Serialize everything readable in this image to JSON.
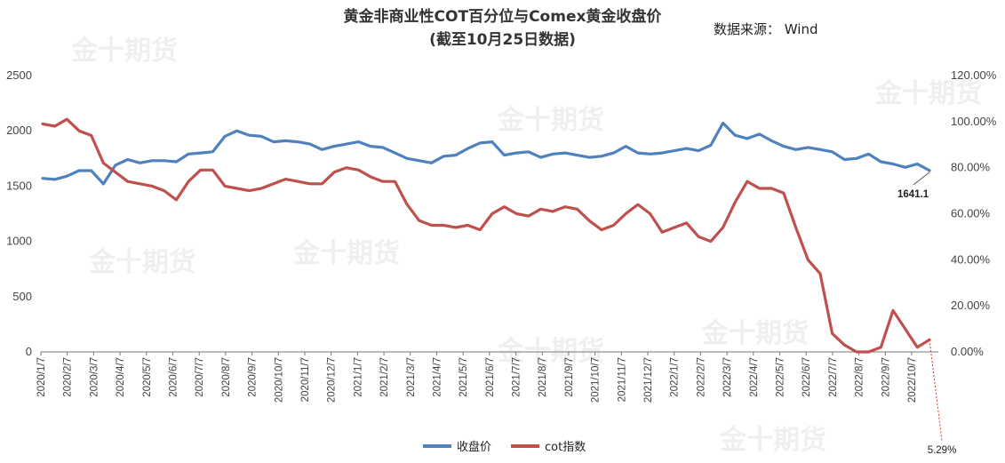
{
  "title_line1": "黄金非商业性COT百分位与Comex黄金收盘价",
  "title_line2": "(截至10月25日数据)",
  "source": "数据来源： Wind",
  "watermark": "金十期货",
  "chart_data": {
    "type": "line",
    "x": [
      "2020/1/7",
      "2020/1/21",
      "2020/2/4",
      "2020/2/18",
      "2020/3/3",
      "2020/3/17",
      "2020/3/31",
      "2020/4/14",
      "2020/4/28",
      "2020/5/12",
      "2020/5/26",
      "2020/6/9",
      "2020/6/23",
      "2020/7/7",
      "2020/7/21",
      "2020/8/4",
      "2020/8/18",
      "2020/9/1",
      "2020/9/15",
      "2020/9/29",
      "2020/10/13",
      "2020/10/27",
      "2020/11/10",
      "2020/11/24",
      "2020/12/8",
      "2020/12/22",
      "2021/1/5",
      "2021/1/19",
      "2021/2/2",
      "2021/2/16",
      "2021/3/2",
      "2021/3/16",
      "2021/3/30",
      "2021/4/13",
      "2021/4/27",
      "2021/5/11",
      "2021/5/25",
      "2021/6/8",
      "2021/6/22",
      "2021/7/6",
      "2021/7/20",
      "2021/8/3",
      "2021/8/17",
      "2021/8/31",
      "2021/9/14",
      "2021/9/28",
      "2021/10/12",
      "2021/10/26",
      "2021/11/9",
      "2021/11/23",
      "2021/12/7",
      "2021/12/21",
      "2022/1/4",
      "2022/1/18",
      "2022/2/1",
      "2022/2/15",
      "2022/3/1",
      "2022/3/15",
      "2022/3/29",
      "2022/4/12",
      "2022/4/26",
      "2022/5/10",
      "2022/5/24",
      "2022/6/7",
      "2022/6/21",
      "2022/7/5",
      "2022/7/19",
      "2022/8/2",
      "2022/8/16",
      "2022/8/30",
      "2022/9/13",
      "2022/9/27",
      "2022/10/11",
      "2022/10/25"
    ],
    "x_tick_labels": [
      "2020/1/7",
      "2020/2/7",
      "2020/3/7",
      "2020/4/7",
      "2020/5/7",
      "2020/6/7",
      "2020/7/7",
      "2020/8/7",
      "2020/9/7",
      "2020/10/7",
      "2020/11/7",
      "2020/12/7",
      "2021/1/7",
      "2021/2/7",
      "2021/3/7",
      "2021/4/7",
      "2021/5/7",
      "2021/6/7",
      "2021/7/7",
      "2021/8/7",
      "2021/9/7",
      "2021/10/7",
      "2021/11/7",
      "2021/12/7",
      "2022/1/7",
      "2022/2/7",
      "2022/3/7",
      "2022/4/7",
      "2022/5/7",
      "2022/6/7",
      "2022/7/7",
      "2022/8/7",
      "2022/9/7",
      "2022/10/7"
    ],
    "series": [
      {
        "name": "收盘价",
        "axis": "left",
        "color": "#4f81bd",
        "values": [
          1570,
          1560,
          1590,
          1640,
          1640,
          1520,
          1690,
          1740,
          1710,
          1730,
          1730,
          1720,
          1790,
          1800,
          1810,
          1950,
          2000,
          1960,
          1950,
          1900,
          1910,
          1900,
          1880,
          1830,
          1860,
          1880,
          1900,
          1860,
          1850,
          1800,
          1750,
          1730,
          1710,
          1770,
          1780,
          1840,
          1890,
          1900,
          1780,
          1800,
          1810,
          1760,
          1790,
          1800,
          1780,
          1760,
          1770,
          1800,
          1860,
          1800,
          1790,
          1800,
          1820,
          1840,
          1820,
          1870,
          2070,
          1960,
          1930,
          1970,
          1910,
          1860,
          1830,
          1850,
          1830,
          1810,
          1740,
          1750,
          1790,
          1720,
          1700,
          1670,
          1700,
          1641.1
        ]
      },
      {
        "name": "cot指数",
        "axis": "right",
        "color": "#c0504d",
        "values": [
          99,
          98,
          101,
          96,
          94,
          82,
          78,
          74,
          73,
          72,
          70,
          66,
          74,
          79,
          79,
          72,
          71,
          70,
          71,
          73,
          75,
          74,
          73,
          73,
          78,
          80,
          79,
          76,
          74,
          74,
          64,
          57,
          55,
          55,
          54,
          55,
          53,
          60,
          63,
          60,
          59,
          62,
          61,
          63,
          62,
          57,
          53,
          55,
          60,
          64,
          60,
          52,
          54,
          56,
          50,
          48,
          54,
          65,
          74,
          71,
          71,
          69,
          54,
          40,
          34,
          8,
          3,
          0,
          0,
          2,
          18,
          10,
          2,
          5.29
        ]
      }
    ],
    "y_left": {
      "min": 0,
      "max": 2500,
      "ticks": [
        0,
        500,
        1000,
        1500,
        2000,
        2500
      ]
    },
    "y_right": {
      "min": 0,
      "max": 120,
      "ticks": [
        "0.00%",
        "20.00%",
        "40.00%",
        "60.00%",
        "80.00%",
        "100.00%",
        "120.00%"
      ]
    },
    "annotations": {
      "last_close": "1641.1",
      "last_cot": "5.29%"
    },
    "legend": {
      "position": "bottom"
    }
  }
}
